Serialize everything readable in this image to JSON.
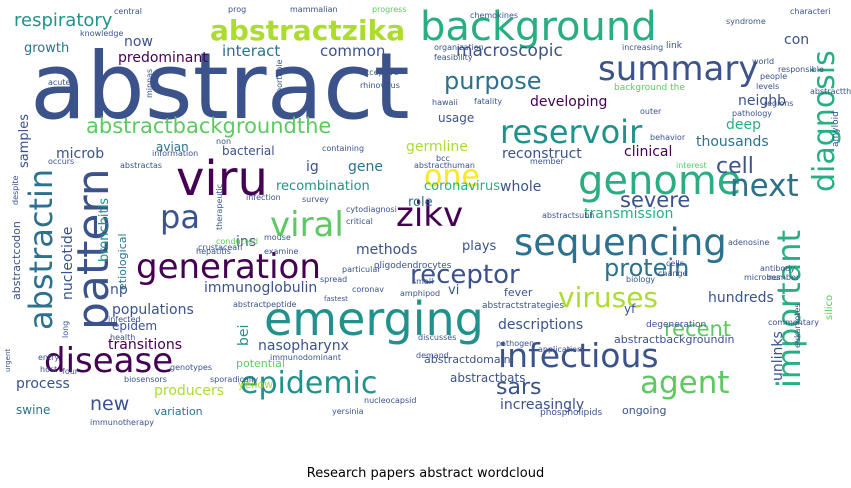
{
  "caption": "Research papers abstract wordcloud",
  "palette": {
    "dark_purple": "#440154",
    "indigo": "#3b528b",
    "blue": "#2c728e",
    "teal": "#21918c",
    "green": "#28ae80",
    "lime": "#5ec962",
    "yellow_green": "#addc30",
    "yellow": "#fde725"
  },
  "words": [
    {
      "text": "abstract",
      "color": "#3b528b"
    },
    {
      "text": "abstractzika",
      "color": "#addc30"
    },
    {
      "text": "background",
      "color": "#28ae80"
    },
    {
      "text": "respiratory",
      "color": "#21918c"
    },
    {
      "text": "summary",
      "color": "#3b528b"
    },
    {
      "text": "purpose",
      "color": "#2c728e"
    },
    {
      "text": "reservoir",
      "color": "#21918c"
    },
    {
      "text": "abstractbackgroundthe",
      "color": "#5ec962"
    },
    {
      "text": "viru",
      "color": "#440154"
    },
    {
      "text": "one",
      "color": "#fde725"
    },
    {
      "text": "genome",
      "color": "#28ae80"
    },
    {
      "text": "next",
      "color": "#2c728e"
    },
    {
      "text": "diagnosis",
      "color": "#28ae80"
    },
    {
      "text": "important",
      "color": "#28ae80"
    },
    {
      "text": "pa",
      "color": "#3b528b"
    },
    {
      "text": "viral",
      "color": "#5ec962"
    },
    {
      "text": "zikv",
      "color": "#440154"
    },
    {
      "text": "sequencing",
      "color": "#2c728e"
    },
    {
      "text": "generation",
      "color": "#440154"
    },
    {
      "text": "pattern",
      "color": "#3b528b"
    },
    {
      "text": "abstractin",
      "color": "#2c728e"
    },
    {
      "text": "emerging",
      "color": "#21918c"
    },
    {
      "text": "disease",
      "color": "#440154"
    },
    {
      "text": "infectious",
      "color": "#3b528b"
    },
    {
      "text": "epidemic",
      "color": "#21918c"
    },
    {
      "text": "agent",
      "color": "#5ec962"
    },
    {
      "text": "viruses",
      "color": "#addc30"
    },
    {
      "text": "receptor",
      "color": "#3b528b"
    },
    {
      "text": "protein",
      "color": "#2c728e"
    },
    {
      "text": "sars",
      "color": "#3b528b"
    },
    {
      "text": "cell",
      "color": "#3b528b"
    },
    {
      "text": "severe",
      "color": "#3b528b"
    },
    {
      "text": "recent",
      "color": "#5ec962"
    },
    {
      "text": "macroscopic",
      "color": "#3b528b"
    },
    {
      "text": "interact",
      "color": "#2c728e"
    },
    {
      "text": "common",
      "color": "#3b528b"
    },
    {
      "text": "now",
      "color": "#3b528b"
    },
    {
      "text": "growth",
      "color": "#2c728e"
    },
    {
      "text": "samples",
      "color": "#3b528b"
    },
    {
      "text": "predominant",
      "color": "#440154"
    },
    {
      "text": "con",
      "color": "#3b528b"
    },
    {
      "text": "neighb",
      "color": "#3b528b"
    },
    {
      "text": "developing",
      "color": "#440154"
    },
    {
      "text": "deep",
      "color": "#28ae80"
    },
    {
      "text": "usage",
      "color": "#3b528b"
    },
    {
      "text": "thousands",
      "color": "#2c728e"
    },
    {
      "text": "clinical",
      "color": "#440154"
    },
    {
      "text": "reconstruct",
      "color": "#3b528b"
    },
    {
      "text": "germline",
      "color": "#addc30"
    },
    {
      "text": "gene",
      "color": "#2c728e"
    },
    {
      "text": "ig",
      "color": "#3b528b"
    },
    {
      "text": "bacterial",
      "color": "#3b528b"
    },
    {
      "text": "avian",
      "color": "#2c728e"
    },
    {
      "text": "microb",
      "color": "#3b528b"
    },
    {
      "text": "whole",
      "color": "#3b528b"
    },
    {
      "text": "recombination",
      "color": "#21918c"
    },
    {
      "text": "role",
      "color": "#2c728e"
    },
    {
      "text": "coronavirus",
      "color": "#28ae80"
    },
    {
      "text": "transmission",
      "color": "#28ae80"
    },
    {
      "text": "nucleotide",
      "color": "#3b528b"
    },
    {
      "text": "bronchitis",
      "color": "#21918c"
    },
    {
      "text": "etiological",
      "color": "#2c728e"
    },
    {
      "text": "abstractcodon",
      "color": "#3b528b"
    },
    {
      "text": "ins",
      "color": "#3b528b"
    },
    {
      "text": "methods",
      "color": "#3b528b"
    },
    {
      "text": "plays",
      "color": "#3b528b"
    },
    {
      "text": "immunoglobulin",
      "color": "#3b528b"
    },
    {
      "text": "populations",
      "color": "#3b528b"
    },
    {
      "text": "np",
      "color": "#3b528b"
    },
    {
      "text": "vi",
      "color": "#3b528b"
    },
    {
      "text": "hundreds",
      "color": "#3b528b"
    },
    {
      "text": "transitions",
      "color": "#440154"
    },
    {
      "text": "bei",
      "color": "#21918c"
    },
    {
      "text": "descriptions",
      "color": "#3b528b"
    },
    {
      "text": "nasopharynx",
      "color": "#3b528b"
    },
    {
      "text": "unlinks",
      "color": "#3b528b"
    },
    {
      "text": "process",
      "color": "#3b528b"
    },
    {
      "text": "producers",
      "color": "#addc30"
    },
    {
      "text": "new",
      "color": "#3b528b"
    },
    {
      "text": "increasingly",
      "color": "#3b528b"
    },
    {
      "text": "swine",
      "color": "#2c728e"
    },
    {
      "text": "variation",
      "color": "#2c728e"
    },
    {
      "text": "ongoing",
      "color": "#3b528b"
    },
    {
      "text": "abstractbackgroundin",
      "color": "#3b528b"
    },
    {
      "text": "abstractdomain",
      "color": "#3b528b"
    },
    {
      "text": "abstractbats",
      "color": "#3b528b"
    },
    {
      "text": "potential",
      "color": "#5ec962"
    },
    {
      "text": "yellow",
      "color": "#addc30"
    },
    {
      "text": "epidem",
      "color": "#3b528b"
    },
    {
      "text": "yf",
      "color": "#3b528b"
    },
    {
      "text": "fever",
      "color": "#3b528b"
    },
    {
      "text": "silico",
      "color": "#5ec962"
    },
    {
      "text": "link",
      "color": "#3b528b"
    },
    {
      "text": "background the",
      "color": "#5ec962"
    },
    {
      "text": "abstractas",
      "color": "#3b528b"
    },
    {
      "text": "oligodendrocytes",
      "color": "#3b528b"
    },
    {
      "text": "abstractstrategies",
      "color": "#3b528b"
    },
    {
      "text": "eukaryotes",
      "color": "#3b528b"
    },
    {
      "text": "amyloid",
      "color": "#3b528b"
    },
    {
      "text": "immunotherapy",
      "color": "#3b528b"
    },
    {
      "text": "phospholipids",
      "color": "#3b528b"
    },
    {
      "text": "nucleocapsid",
      "color": "#3b528b"
    },
    {
      "text": "degeneration",
      "color": "#3b528b"
    },
    {
      "text": "biosensors",
      "color": "#3b528b"
    },
    {
      "text": "sporadically",
      "color": "#3b528b"
    },
    {
      "text": "pathogen",
      "color": "#3b528b"
    },
    {
      "text": "application",
      "color": "#3b528b"
    },
    {
      "text": "fastest",
      "color": "#3b528b"
    },
    {
      "text": "demand",
      "color": "#3b528b"
    },
    {
      "text": "despite",
      "color": "#3b528b"
    },
    {
      "text": "adenosine",
      "color": "#3b528b"
    },
    {
      "text": "interest",
      "color": "#5ec962"
    },
    {
      "text": "rhinovirus",
      "color": "#3b528b"
    },
    {
      "text": "knowledge",
      "color": "#3b528b"
    },
    {
      "text": "mammalian",
      "color": "#3b528b"
    },
    {
      "text": "progress",
      "color": "#5ec962"
    },
    {
      "text": "syndrome",
      "color": "#3b528b"
    },
    {
      "text": "people",
      "color": "#3b528b"
    },
    {
      "text": "world",
      "color": "#3b528b"
    },
    {
      "text": "increasing",
      "color": "#3b528b"
    },
    {
      "text": "regions",
      "color": "#3b528b"
    },
    {
      "text": "pathology",
      "color": "#3b528b"
    },
    {
      "text": "outer",
      "color": "#3b528b"
    },
    {
      "text": "member",
      "color": "#3b528b"
    },
    {
      "text": "survey",
      "color": "#3b528b"
    },
    {
      "text": "occurs",
      "color": "#3b528b"
    },
    {
      "text": "antibody",
      "color": "#3b528b"
    },
    {
      "text": "biology",
      "color": "#3b528b"
    },
    {
      "text": "infected",
      "color": "#3b528b"
    },
    {
      "text": "health",
      "color": "#3b528b"
    },
    {
      "text": "conducted",
      "color": "#5ec962"
    },
    {
      "text": "crustacean",
      "color": "#3b528b"
    },
    {
      "text": "examine",
      "color": "#3b528b"
    },
    {
      "text": "mouse",
      "color": "#3b528b"
    },
    {
      "text": "particular",
      "color": "#3b528b"
    },
    {
      "text": "spread",
      "color": "#3b528b"
    },
    {
      "text": "coronav",
      "color": "#3b528b"
    },
    {
      "text": "amphipod",
      "color": "#3b528b"
    },
    {
      "text": "small",
      "color": "#3b528b"
    },
    {
      "text": "host",
      "color": "#3b528b"
    },
    {
      "text": "entry",
      "color": "#3b528b"
    },
    {
      "text": "urgent",
      "color": "#3b528b"
    },
    {
      "text": "number",
      "color": "#3b528b"
    },
    {
      "text": "commentary",
      "color": "#3b528b"
    },
    {
      "text": "portable",
      "color": "#3b528b"
    },
    {
      "text": "minnas",
      "color": "#3b528b"
    },
    {
      "text": "acute",
      "color": "#3b528b"
    },
    {
      "text": "hawaii",
      "color": "#3b528b"
    },
    {
      "text": "fatality",
      "color": "#3b528b"
    },
    {
      "text": "feasibility",
      "color": "#3b528b"
    },
    {
      "text": "organization",
      "color": "#3b528b"
    },
    {
      "text": "information",
      "color": "#3b528b"
    },
    {
      "text": "containing",
      "color": "#3b528b"
    },
    {
      "text": "infection",
      "color": "#3b528b"
    },
    {
      "text": "characteri",
      "color": "#3b528b"
    },
    {
      "text": "responsible",
      "color": "#3b528b"
    },
    {
      "text": "levels",
      "color": "#3b528b"
    },
    {
      "text": "abstractthe",
      "color": "#3b528b"
    },
    {
      "text": "chemokines",
      "color": "#3b528b"
    },
    {
      "text": "prog",
      "color": "#3b528b"
    },
    {
      "text": "non",
      "color": "#3b528b"
    },
    {
      "text": "bcc",
      "color": "#3b528b"
    },
    {
      "text": "microbes",
      "color": "#3b528b"
    },
    {
      "text": "cells",
      "color": "#3b528b"
    },
    {
      "text": "change",
      "color": "#3b528b"
    },
    {
      "text": "cytodiagnosi",
      "color": "#3b528b"
    },
    {
      "text": "critical",
      "color": "#3b528b"
    },
    {
      "text": "therapeutic",
      "color": "#3b528b"
    },
    {
      "text": "long",
      "color": "#3b528b"
    },
    {
      "text": "four",
      "color": "#3b528b"
    },
    {
      "text": "discusses",
      "color": "#3b528b"
    },
    {
      "text": "genotypes",
      "color": "#3b528b"
    },
    {
      "text": "yersinia",
      "color": "#3b528b"
    },
    {
      "text": "central",
      "color": "#3b528b"
    },
    {
      "text": "acceptive",
      "color": "#3b528b"
    },
    {
      "text": "behavior",
      "color": "#3b528b"
    },
    {
      "text": "abstractsubh",
      "color": "#3b528b"
    },
    {
      "text": "abstracthuman",
      "color": "#3b528b"
    },
    {
      "text": "hepatitis",
      "color": "#3b528b"
    },
    {
      "text": "abstractpeptide",
      "color": "#3b528b"
    },
    {
      "text": "immunodominant",
      "color": "#3b528b"
    }
  ]
}
